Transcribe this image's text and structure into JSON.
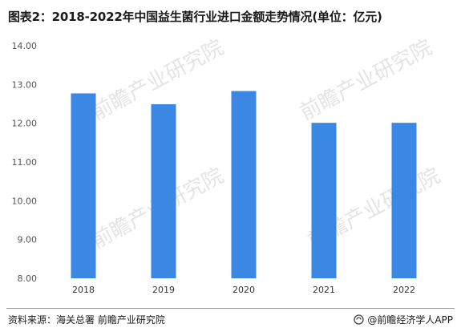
{
  "title": "图表2：2018-2022年中国益生菌行业进口金额走势情况(单位：亿元)",
  "watermark": "前瞻产业研究院",
  "footer": {
    "source": "资料来源：海关总署  前瞻产业研究院",
    "brand": "@前瞻经济学人APP"
  },
  "colors": {
    "bar": "#3b87e4",
    "axis_text": "#555555",
    "watermark": "#e4e4e4"
  },
  "chart_data": {
    "type": "bar",
    "categories": [
      "2018",
      "2019",
      "2020",
      "2021",
      "2022"
    ],
    "values": [
      12.77,
      12.49,
      12.83,
      12.01,
      12.01
    ],
    "ylim": [
      8.0,
      14.0
    ],
    "yticks": [
      "14.00",
      "13.00",
      "12.00",
      "11.00",
      "10.00",
      "9.00",
      "8.00"
    ],
    "grid": false,
    "legend": "none"
  }
}
